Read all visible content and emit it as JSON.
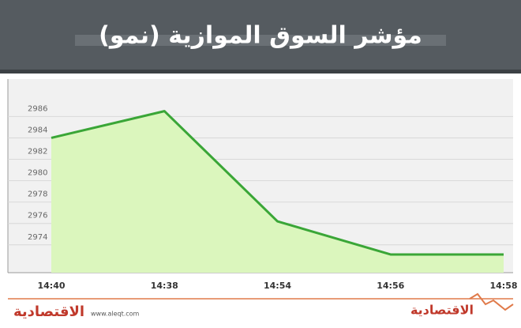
{
  "chart_data": {
    "type": "line",
    "title": "مؤشر السوق الموازية (نمو)",
    "categories": [
      "14:40",
      "14:38",
      "14:54",
      "14:56",
      "14:58"
    ],
    "values": [
      2984.0,
      2986.5,
      2976.2,
      2973.1,
      2973.1
    ],
    "color": "#3aa637",
    "fill": "#dbf6bd",
    "ylim": [
      2971.4,
      2989.5
    ],
    "yticks": [
      2974,
      2976,
      2978,
      2980,
      2982,
      2984,
      2986
    ],
    "grid": true
  },
  "footer": {
    "logo": "الاقتصادية",
    "url": "www.aleqt.com"
  }
}
